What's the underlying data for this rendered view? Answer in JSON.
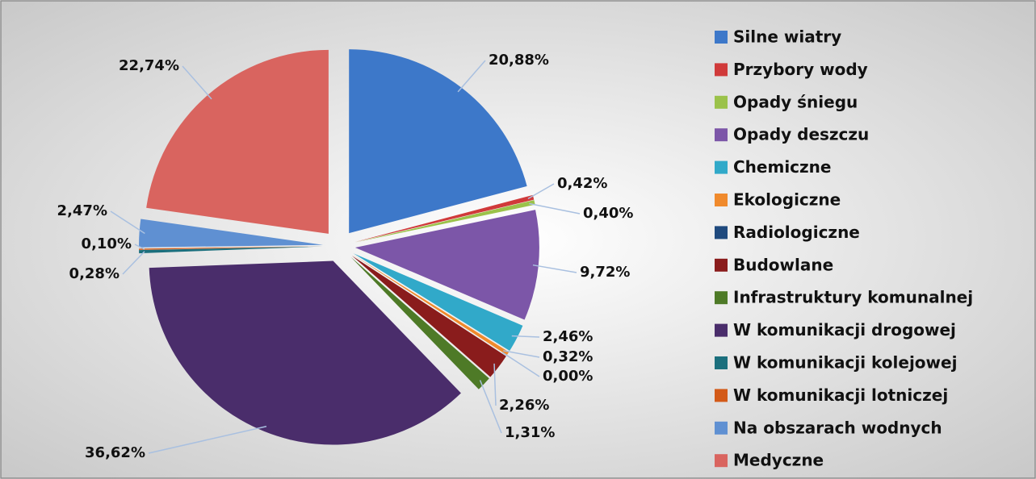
{
  "chart_data": {
    "type": "pie",
    "categories": [
      "Silne wiatry",
      "Przybory wody",
      "Opady śniegu",
      "Opady deszczu",
      "Chemiczne",
      "Ekologiczne",
      "Radiologiczne",
      "Budowlane",
      "Infrastruktury komunalnej",
      "W komunikacji drogowej",
      "W komunikacji kolejowej",
      "W komunikacji lotniczej",
      "Na obszarach wodnych",
      "Medyczne"
    ],
    "values": [
      20.88,
      0.42,
      0.4,
      9.72,
      2.46,
      0.32,
      0.0,
      2.26,
      1.31,
      36.62,
      0.28,
      0.1,
      2.47,
      22.74
    ],
    "value_labels": [
      "20,88%",
      "0,42%",
      "0,40%",
      "9,72%",
      "2,46%",
      "0,32%",
      "0,00%",
      "2,26%",
      "1,31%",
      "36,62%",
      "0,28%",
      "0,10%",
      "2,47%",
      "22,74%"
    ],
    "colors": [
      "#3d78c9",
      "#d03a3a",
      "#9bc24a",
      "#7c56a8",
      "#31a9c9",
      "#f08a2c",
      "#1f4a7e",
      "#8a1c1c",
      "#4e7a27",
      "#4a2d6b",
      "#1b6f7d",
      "#d35a18",
      "#5f90d2",
      "#d9645f"
    ],
    "legend": "right"
  }
}
